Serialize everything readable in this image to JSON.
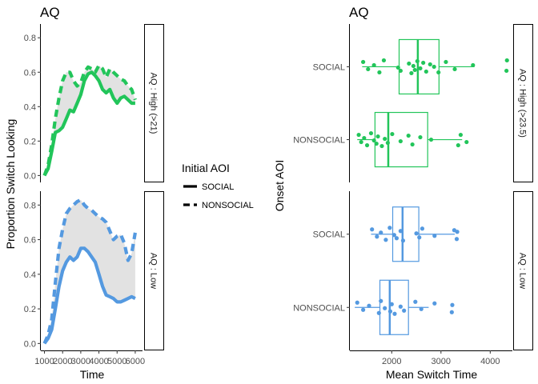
{
  "colors": {
    "high": "#22c55a",
    "low": "#5499e0",
    "ribbon": "#e2e2e2"
  },
  "legend": {
    "title": "Initial AOI",
    "entries": [
      {
        "label": "SOCIAL",
        "dash": "solid"
      },
      {
        "label": "NONSOCIAL",
        "dash": "dashed"
      }
    ]
  },
  "chart_data": [
    {
      "type": "line",
      "title": "AQ",
      "xlabel": "Time",
      "ylabel": "Proportion Switch Looking",
      "xlim": [
        800,
        6400
      ],
      "ylim": [
        -0.04,
        0.88
      ],
      "x_ticks": [
        1000,
        2000,
        3000,
        4000,
        5000,
        6000
      ],
      "y_ticks": [
        0.0,
        0.2,
        0.4,
        0.6,
        0.8
      ],
      "y_tick_labels": [
        "0.0",
        "0.2",
        "0.4",
        "0.6",
        "0.8"
      ],
      "facets": [
        {
          "strip": "AQ : High (>21)",
          "color_key": "high",
          "x": [
            1000,
            1200,
            1400,
            1600,
            1800,
            2000,
            2200,
            2400,
            2600,
            2800,
            3000,
            3200,
            3400,
            3600,
            3800,
            4000,
            4200,
            4400,
            4600,
            4800,
            5000,
            5200,
            5400,
            5600,
            5800,
            6000
          ],
          "series": [
            {
              "name": "SOCIAL",
              "dash": "solid",
              "values": [
                0.0,
                0.04,
                0.14,
                0.25,
                0.26,
                0.28,
                0.33,
                0.38,
                0.37,
                0.42,
                0.47,
                0.55,
                0.59,
                0.6,
                0.58,
                0.55,
                0.5,
                0.48,
                0.5,
                0.45,
                0.42,
                0.45,
                0.46,
                0.44,
                0.42,
                0.42
              ]
            },
            {
              "name": "NONSOCIAL",
              "dash": "dashed",
              "values": [
                0.0,
                0.06,
                0.18,
                0.33,
                0.45,
                0.55,
                0.6,
                0.6,
                0.55,
                0.52,
                0.54,
                0.6,
                0.63,
                0.62,
                0.6,
                0.64,
                0.62,
                0.57,
                0.62,
                0.6,
                0.58,
                0.56,
                0.55,
                0.52,
                0.5,
                0.44
              ]
            }
          ]
        },
        {
          "strip": "AQ : Low",
          "color_key": "low",
          "x": [
            1000,
            1200,
            1400,
            1600,
            1800,
            2000,
            2200,
            2400,
            2600,
            2800,
            3000,
            3200,
            3400,
            3600,
            3800,
            4000,
            4200,
            4400,
            4600,
            4800,
            5000,
            5200,
            5400,
            5600,
            5800,
            6000
          ],
          "series": [
            {
              "name": "SOCIAL",
              "dash": "solid",
              "values": [
                0.0,
                0.03,
                0.08,
                0.2,
                0.33,
                0.42,
                0.47,
                0.5,
                0.48,
                0.5,
                0.55,
                0.55,
                0.53,
                0.5,
                0.47,
                0.4,
                0.33,
                0.28,
                0.27,
                0.26,
                0.24,
                0.24,
                0.25,
                0.26,
                0.27,
                0.26
              ]
            },
            {
              "name": "NONSOCIAL",
              "dash": "dashed",
              "values": [
                0.0,
                0.05,
                0.14,
                0.35,
                0.55,
                0.66,
                0.75,
                0.78,
                0.8,
                0.82,
                0.83,
                0.8,
                0.78,
                0.77,
                0.75,
                0.73,
                0.72,
                0.7,
                0.65,
                0.6,
                0.62,
                0.63,
                0.58,
                0.48,
                0.52,
                0.64
              ]
            }
          ]
        }
      ]
    },
    {
      "type": "boxplot",
      "title": "AQ",
      "xlabel": "Mean Switch Time",
      "ylabel": "Onset AOI",
      "xlim": [
        1150,
        4450
      ],
      "x_ticks": [
        2000,
        3000,
        4000
      ],
      "categories": [
        "SOCIAL",
        "NONSOCIAL"
      ],
      "facets": [
        {
          "strip": "AQ : High (>23.5)",
          "color_key": "high",
          "boxes": [
            {
              "category": "SOCIAL",
              "whisker_low": 1400,
              "q1": 2150,
              "median": 2530,
              "q3": 2960,
              "whisker_high": 3680,
              "points": [
                1420,
                1520,
                1640,
                1750,
                1840,
                2130,
                2180,
                2350,
                2400,
                2440,
                2470,
                2520,
                2580,
                2640,
                2700,
                2780,
                2860,
                2950,
                3100,
                3280,
                3650,
                4330,
                4340
              ]
            },
            {
              "category": "NONSOCIAL",
              "whisker_low": 1300,
              "q1": 1660,
              "median": 1930,
              "q3": 2730,
              "whisker_high": 3430,
              "points": [
                1330,
                1380,
                1440,
                1500,
                1580,
                1640,
                1690,
                1720,
                1800,
                1860,
                1920,
                2010,
                2180,
                2340,
                2420,
                2580,
                2800,
                3350,
                3400,
                3520
              ]
            }
          ]
        },
        {
          "strip": "AQ : Low",
          "color_key": "low",
          "boxes": [
            {
              "category": "SOCIAL",
              "whisker_low": 1580,
              "q1": 2020,
              "median": 2220,
              "q3": 2550,
              "whisker_high": 3280,
              "points": [
                1600,
                1700,
                1780,
                1880,
                1960,
                2050,
                2100,
                2180,
                2230,
                2500,
                2560,
                2620,
                2870,
                3270,
                3320,
                3330
              ]
            },
            {
              "category": "NONSOCIAL",
              "whisker_low": 1250,
              "q1": 1760,
              "median": 1960,
              "q3": 2340,
              "whisker_high": 2750,
              "points": [
                1300,
                1420,
                1540,
                1740,
                1780,
                1860,
                1970,
                2000,
                2060,
                2180,
                2250,
                2480,
                2600,
                2870,
                3220,
                3230
              ]
            }
          ]
        }
      ]
    }
  ]
}
